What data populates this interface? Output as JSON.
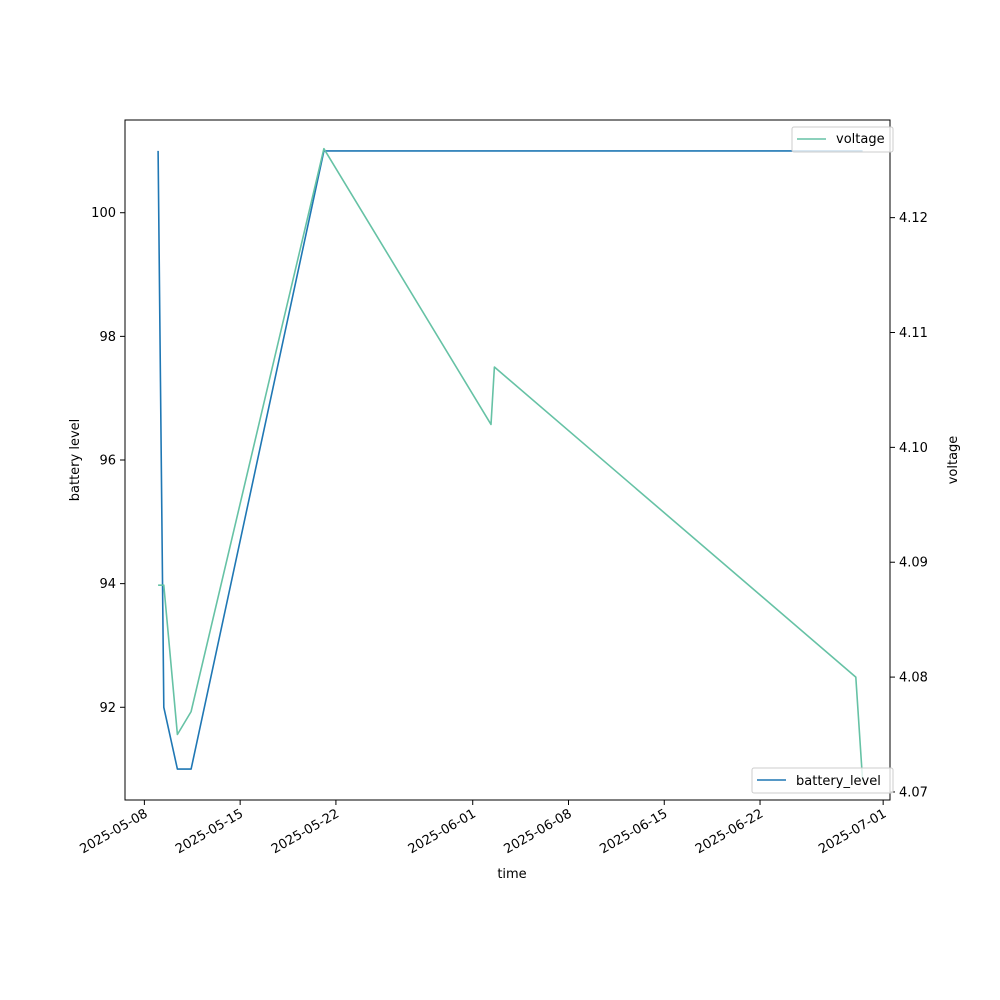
{
  "chart_data": {
    "type": "line",
    "xlabel": "time",
    "ylabel_left": "battery level",
    "ylabel_right": "voltage",
    "x_ticks": [
      "2025-05-08",
      "2025-05-15",
      "2025-05-22",
      "2025-06-01",
      "2025-06-08",
      "2025-06-15",
      "2025-06-22",
      "2025-07-01"
    ],
    "xlim": [
      "2025-05-06T14:00",
      "2025-07-01T12:00"
    ],
    "ylim_left": [
      90.5,
      101.5
    ],
    "yticks_left": [
      92,
      94,
      96,
      98,
      100
    ],
    "ylim_right": [
      4.0693,
      4.1285
    ],
    "yticks_right": [
      4.07,
      4.08,
      4.09,
      4.1,
      4.11,
      4.12
    ],
    "grid": false,
    "series": [
      {
        "name": "battery_level",
        "axis": "left",
        "color": "#1f77b4",
        "legend_position": "lower right",
        "points": [
          [
            "2025-05-09T00:00",
            101
          ],
          [
            "2025-05-09T10:00",
            92
          ],
          [
            "2025-05-10T10:00",
            91
          ],
          [
            "2025-05-11T10:00",
            91
          ],
          [
            "2025-05-21T03:00",
            101
          ],
          [
            "2025-06-29T12:00",
            101
          ]
        ]
      },
      {
        "name": "voltage",
        "axis": "right",
        "color": "#66c2a5",
        "legend_position": "upper right",
        "points": [
          [
            "2025-05-09T00:00",
            4.088
          ],
          [
            "2025-05-09T10:00",
            4.088
          ],
          [
            "2025-05-10T10:00",
            4.075
          ],
          [
            "2025-05-11T10:00",
            4.077
          ],
          [
            "2025-05-21T03:00",
            4.126
          ],
          [
            "2025-06-02T08:00",
            4.102
          ],
          [
            "2025-06-02T14:00",
            4.107
          ],
          [
            "2025-06-29T00:00",
            4.08
          ],
          [
            "2025-06-29T12:00",
            4.071
          ]
        ]
      }
    ]
  }
}
